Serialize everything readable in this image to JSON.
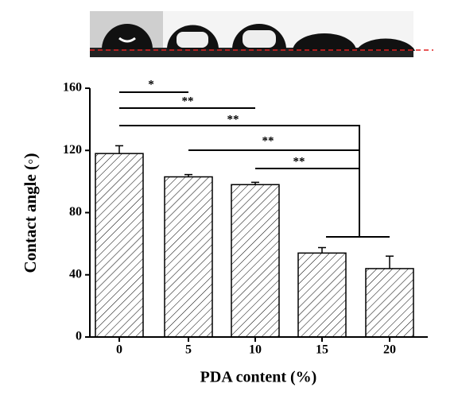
{
  "chart_data": {
    "type": "bar",
    "xlabel": "PDA content (%)",
    "ylabel": "Contact angle (◦)",
    "categories": [
      "0",
      "5",
      "10",
      "15",
      "20"
    ],
    "values": [
      118,
      103,
      98,
      54,
      44
    ],
    "errors": [
      5,
      1.5,
      1.5,
      3.5,
      8
    ],
    "color": "#ffffff",
    "ylim": [
      0,
      160
    ],
    "yticks": [
      0,
      40,
      80,
      120,
      160
    ],
    "annotations": [
      "*",
      "**",
      "**",
      "**",
      "**"
    ]
  }
}
